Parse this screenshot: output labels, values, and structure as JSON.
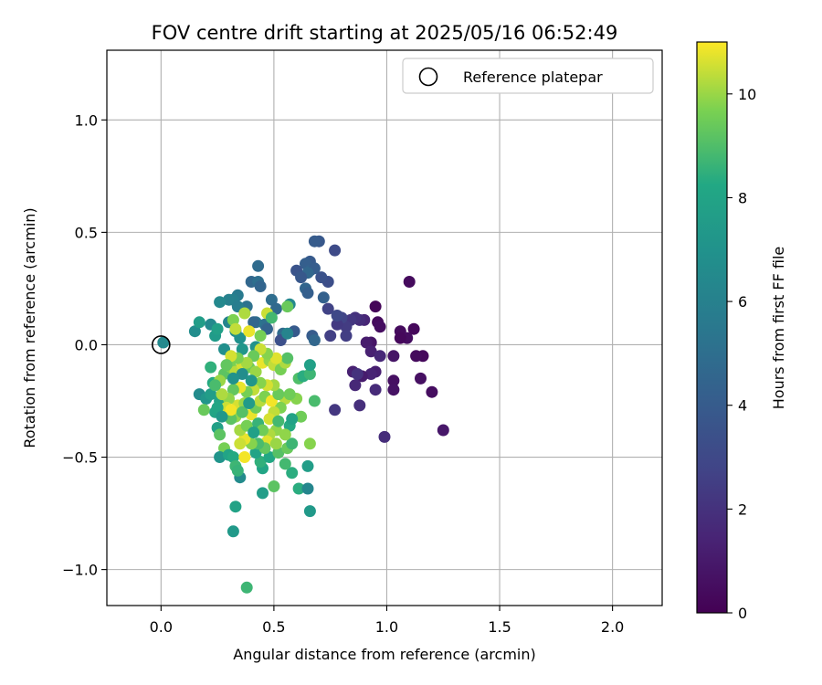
{
  "chart_data": {
    "type": "scatter",
    "title": "FOV centre drift starting at 2025/05/16 06:52:49",
    "xlabel": "Angular distance from reference (arcmin)",
    "ylabel": "Rotation from reference (arcmin)",
    "xlim": [
      -0.24,
      2.22
    ],
    "ylim": [
      -1.16,
      1.31
    ],
    "xticks": [
      0.0,
      0.5,
      1.0,
      1.5,
      2.0
    ],
    "yticks": [
      -1.0,
      -0.5,
      0.0,
      0.5,
      1.0
    ],
    "xtick_labels": [
      "0.0",
      "0.5",
      "1.0",
      "1.5",
      "2.0"
    ],
    "ytick_labels": [
      "−1.0",
      "−0.5",
      "0.0",
      "0.5",
      "1.0"
    ],
    "grid": true,
    "legend": {
      "position": "top-right",
      "entries": [
        "Reference platepar"
      ]
    },
    "reference_point": {
      "x": 0.0,
      "y": 0.0
    },
    "colorbar": {
      "label": "Hours from first FF file",
      "colormap": "viridis",
      "range": [
        0,
        11
      ],
      "ticks": [
        0,
        2,
        4,
        6,
        8,
        10
      ],
      "tick_labels": [
        "0",
        "2",
        "4",
        "6",
        "8",
        "10"
      ]
    },
    "points": [
      {
        "x": 1.1,
        "y": 0.28,
        "h": 0.4
      },
      {
        "x": 1.12,
        "y": 0.07,
        "h": 0.3
      },
      {
        "x": 1.06,
        "y": 0.06,
        "h": 0.4
      },
      {
        "x": 1.09,
        "y": 0.03,
        "h": 0.5
      },
      {
        "x": 1.06,
        "y": 0.03,
        "h": 0.3
      },
      {
        "x": 1.16,
        "y": -0.05,
        "h": 0.3
      },
      {
        "x": 1.13,
        "y": -0.05,
        "h": 0.4
      },
      {
        "x": 1.15,
        "y": -0.15,
        "h": 0.6
      },
      {
        "x": 1.2,
        "y": -0.21,
        "h": 0.5
      },
      {
        "x": 1.25,
        "y": -0.38,
        "h": 0.9
      },
      {
        "x": 1.03,
        "y": -0.16,
        "h": 0.6
      },
      {
        "x": 1.03,
        "y": -0.2,
        "h": 0.7
      },
      {
        "x": 0.95,
        "y": 0.17,
        "h": 0.2
      },
      {
        "x": 0.96,
        "y": 0.1,
        "h": 0.4
      },
      {
        "x": 0.97,
        "y": 0.08,
        "h": 0.5
      },
      {
        "x": 0.93,
        "y": 0.01,
        "h": 0.8
      },
      {
        "x": 0.91,
        "y": 0.01,
        "h": 1.1
      },
      {
        "x": 0.93,
        "y": -0.03,
        "h": 1.3
      },
      {
        "x": 0.97,
        "y": -0.05,
        "h": 1.6
      },
      {
        "x": 1.03,
        "y": -0.05,
        "h": 0.8
      },
      {
        "x": 0.99,
        "y": -0.41,
        "h": 1.8
      },
      {
        "x": 0.95,
        "y": -0.12,
        "h": 1.2
      },
      {
        "x": 0.93,
        "y": -0.13,
        "h": 1.4
      },
      {
        "x": 0.95,
        "y": -0.2,
        "h": 1.7
      },
      {
        "x": 0.89,
        "y": -0.14,
        "h": 1.1
      },
      {
        "x": 0.85,
        "y": -0.12,
        "h": 1.3
      },
      {
        "x": 0.86,
        "y": -0.18,
        "h": 1.6
      },
      {
        "x": 0.88,
        "y": -0.27,
        "h": 1.9
      },
      {
        "x": 0.87,
        "y": -0.13,
        "h": 2.0
      },
      {
        "x": 0.77,
        "y": -0.29,
        "h": 2.2
      },
      {
        "x": 0.9,
        "y": 0.11,
        "h": 1.5
      },
      {
        "x": 0.88,
        "y": 0.11,
        "h": 1.8
      },
      {
        "x": 0.86,
        "y": 0.12,
        "h": 2.0
      },
      {
        "x": 0.84,
        "y": 0.11,
        "h": 2.2
      },
      {
        "x": 0.82,
        "y": 0.08,
        "h": 2.4
      },
      {
        "x": 0.8,
        "y": 0.12,
        "h": 2.8
      },
      {
        "x": 0.82,
        "y": 0.04,
        "h": 2.5
      },
      {
        "x": 0.75,
        "y": 0.04,
        "h": 2.6
      },
      {
        "x": 0.78,
        "y": 0.09,
        "h": 2.3
      },
      {
        "x": 0.74,
        "y": 0.16,
        "h": 2.7
      },
      {
        "x": 0.78,
        "y": 0.13,
        "h": 3.0
      },
      {
        "x": 0.77,
        "y": 0.42,
        "h": 3.1
      },
      {
        "x": 0.74,
        "y": 0.28,
        "h": 3.3
      },
      {
        "x": 0.71,
        "y": 0.3,
        "h": 3.5
      },
      {
        "x": 0.7,
        "y": 0.46,
        "h": 3.8
      },
      {
        "x": 0.68,
        "y": 0.46,
        "h": 4.0
      },
      {
        "x": 0.66,
        "y": 0.37,
        "h": 3.9
      },
      {
        "x": 0.64,
        "y": 0.36,
        "h": 4.2
      },
      {
        "x": 0.66,
        "y": 0.33,
        "h": 4.4
      },
      {
        "x": 0.68,
        "y": 0.34,
        "h": 4.1
      },
      {
        "x": 0.65,
        "y": 0.32,
        "h": 4.6
      },
      {
        "x": 0.6,
        "y": 0.33,
        "h": 3.6
      },
      {
        "x": 0.62,
        "y": 0.3,
        "h": 3.8
      },
      {
        "x": 0.72,
        "y": 0.21,
        "h": 4.3
      },
      {
        "x": 0.64,
        "y": 0.25,
        "h": 4.5
      },
      {
        "x": 0.65,
        "y": 0.23,
        "h": 4.2
      },
      {
        "x": 0.67,
        "y": 0.04,
        "h": 4.0
      },
      {
        "x": 0.68,
        "y": 0.02,
        "h": 4.6
      },
      {
        "x": 0.59,
        "y": 0.06,
        "h": 3.9
      },
      {
        "x": 0.54,
        "y": 0.05,
        "h": 4.8
      },
      {
        "x": 0.53,
        "y": 0.02,
        "h": 3.4
      },
      {
        "x": 0.43,
        "y": 0.35,
        "h": 4.8
      },
      {
        "x": 0.4,
        "y": 0.28,
        "h": 4.6
      },
      {
        "x": 0.43,
        "y": 0.28,
        "h": 5.0
      },
      {
        "x": 0.44,
        "y": 0.26,
        "h": 4.5
      },
      {
        "x": 0.49,
        "y": 0.2,
        "h": 4.9
      },
      {
        "x": 0.51,
        "y": 0.16,
        "h": 4.7
      },
      {
        "x": 0.46,
        "y": 0.09,
        "h": 5.0
      },
      {
        "x": 0.47,
        "y": 0.07,
        "h": 4.4
      },
      {
        "x": 0.42,
        "y": 0.1,
        "h": 5.3
      },
      {
        "x": 0.38,
        "y": 0.17,
        "h": 5.2
      },
      {
        "x": 0.41,
        "y": 0.1,
        "h": 4.6
      },
      {
        "x": 0.34,
        "y": 0.22,
        "h": 5.6
      },
      {
        "x": 0.32,
        "y": 0.2,
        "h": 5.9
      },
      {
        "x": 0.3,
        "y": 0.2,
        "h": 6.0
      },
      {
        "x": 0.34,
        "y": 0.17,
        "h": 5.8
      },
      {
        "x": 0.3,
        "y": 0.1,
        "h": 6.2
      },
      {
        "x": 0.26,
        "y": 0.19,
        "h": 6.4
      },
      {
        "x": 0.22,
        "y": 0.09,
        "h": 6.5
      },
      {
        "x": 0.15,
        "y": 0.06,
        "h": 6.7
      },
      {
        "x": 0.17,
        "y": 0.1,
        "h": 7.6
      },
      {
        "x": 0.01,
        "y": 0.01,
        "h": 6.5
      },
      {
        "x": 0.57,
        "y": 0.18,
        "h": 6.4
      },
      {
        "x": 0.56,
        "y": 0.05,
        "h": 6.2
      },
      {
        "x": 0.33,
        "y": 0.06,
        "h": 6.6
      },
      {
        "x": 0.35,
        "y": 0.03,
        "h": 6.9
      },
      {
        "x": 0.36,
        "y": -0.02,
        "h": 7.2
      },
      {
        "x": 0.28,
        "y": -0.02,
        "h": 6.8
      },
      {
        "x": 0.42,
        "y": -0.01,
        "h": 7.0
      },
      {
        "x": 0.24,
        "y": 0.04,
        "h": 7.5
      },
      {
        "x": 0.25,
        "y": 0.07,
        "h": 7.8
      },
      {
        "x": 0.22,
        "y": -0.1,
        "h": 8.5
      },
      {
        "x": 0.23,
        "y": -0.17,
        "h": 8.3
      },
      {
        "x": 0.17,
        "y": -0.22,
        "h": 6.6
      },
      {
        "x": 0.2,
        "y": -0.24,
        "h": 7.2
      },
      {
        "x": 0.22,
        "y": -0.22,
        "h": 7.6
      },
      {
        "x": 0.26,
        "y": -0.25,
        "h": 7.9
      },
      {
        "x": 0.24,
        "y": -0.3,
        "h": 8.0
      },
      {
        "x": 0.19,
        "y": -0.29,
        "h": 9.4
      },
      {
        "x": 0.25,
        "y": -0.37,
        "h": 7.8
      },
      {
        "x": 0.26,
        "y": -0.4,
        "h": 9.2
      },
      {
        "x": 0.28,
        "y": -0.46,
        "h": 9.6
      },
      {
        "x": 0.26,
        "y": -0.5,
        "h": 7.1
      },
      {
        "x": 0.3,
        "y": -0.49,
        "h": 8.0
      },
      {
        "x": 0.32,
        "y": -0.5,
        "h": 8.3
      },
      {
        "x": 0.33,
        "y": -0.54,
        "h": 8.7
      },
      {
        "x": 0.35,
        "y": -0.59,
        "h": 6.6
      },
      {
        "x": 0.34,
        "y": -0.56,
        "h": 8.6
      },
      {
        "x": 0.33,
        "y": -0.72,
        "h": 7.9
      },
      {
        "x": 0.32,
        "y": -0.83,
        "h": 7.4
      },
      {
        "x": 0.38,
        "y": -1.08,
        "h": 8.7
      },
      {
        "x": 0.45,
        "y": -0.66,
        "h": 7.6
      },
      {
        "x": 0.5,
        "y": -0.63,
        "h": 9.2
      },
      {
        "x": 0.61,
        "y": -0.64,
        "h": 8.4
      },
      {
        "x": 0.65,
        "y": -0.64,
        "h": 6.3
      },
      {
        "x": 0.66,
        "y": -0.74,
        "h": 7.4
      },
      {
        "x": 0.65,
        "y": -0.54,
        "h": 7.6
      },
      {
        "x": 0.66,
        "y": -0.44,
        "h": 9.8
      },
      {
        "x": 0.58,
        "y": -0.57,
        "h": 8.4
      },
      {
        "x": 0.55,
        "y": -0.53,
        "h": 8.8
      },
      {
        "x": 0.45,
        "y": -0.55,
        "h": 8.1
      },
      {
        "x": 0.44,
        "y": -0.52,
        "h": 8.5
      },
      {
        "x": 0.42,
        "y": -0.48,
        "h": 8.0
      },
      {
        "x": 0.48,
        "y": -0.5,
        "h": 8.2
      },
      {
        "x": 0.52,
        "y": -0.48,
        "h": 9.1
      },
      {
        "x": 0.56,
        "y": -0.46,
        "h": 9.4
      },
      {
        "x": 0.58,
        "y": -0.44,
        "h": 8.7
      },
      {
        "x": 0.62,
        "y": -0.32,
        "h": 9.5
      },
      {
        "x": 0.57,
        "y": -0.36,
        "h": 8.3
      },
      {
        "x": 0.58,
        "y": -0.33,
        "h": 7.9
      },
      {
        "x": 0.61,
        "y": -0.15,
        "h": 9.0
      },
      {
        "x": 0.63,
        "y": -0.14,
        "h": 8.4
      },
      {
        "x": 0.66,
        "y": -0.13,
        "h": 8.7
      },
      {
        "x": 0.66,
        "y": -0.09,
        "h": 7.8
      },
      {
        "x": 0.68,
        "y": -0.25,
        "h": 8.9
      },
      {
        "x": 0.6,
        "y": -0.24,
        "h": 9.8
      },
      {
        "x": 0.55,
        "y": -0.24,
        "h": 10.3
      },
      {
        "x": 0.57,
        "y": -0.22,
        "h": 9.5
      },
      {
        "x": 0.53,
        "y": -0.28,
        "h": 9.7
      },
      {
        "x": 0.5,
        "y": -0.3,
        "h": 10.4
      },
      {
        "x": 0.48,
        "y": -0.33,
        "h": 10.6
      },
      {
        "x": 0.51,
        "y": -0.38,
        "h": 9.9
      },
      {
        "x": 0.48,
        "y": -0.4,
        "h": 10.2
      },
      {
        "x": 0.47,
        "y": -0.43,
        "h": 10.7
      },
      {
        "x": 0.51,
        "y": -0.44,
        "h": 10.0
      },
      {
        "x": 0.46,
        "y": -0.46,
        "h": 9.3
      },
      {
        "x": 0.43,
        "y": -0.44,
        "h": 8.9
      },
      {
        "x": 0.4,
        "y": -0.44,
        "h": 9.8
      },
      {
        "x": 0.37,
        "y": -0.42,
        "h": 10.8
      },
      {
        "x": 0.35,
        "y": -0.44,
        "h": 10.5
      },
      {
        "x": 0.37,
        "y": -0.5,
        "h": 10.9
      },
      {
        "x": 0.35,
        "y": -0.38,
        "h": 10.1
      },
      {
        "x": 0.38,
        "y": -0.36,
        "h": 9.6
      },
      {
        "x": 0.33,
        "y": -0.32,
        "h": 9.9
      },
      {
        "x": 0.31,
        "y": -0.33,
        "h": 9.2
      },
      {
        "x": 0.34,
        "y": -0.27,
        "h": 10.6
      },
      {
        "x": 0.37,
        "y": -0.26,
        "h": 10.0
      },
      {
        "x": 0.4,
        "y": -0.31,
        "h": 10.8
      },
      {
        "x": 0.42,
        "y": -0.28,
        "h": 9.5
      },
      {
        "x": 0.44,
        "y": -0.25,
        "h": 10.3
      },
      {
        "x": 0.46,
        "y": -0.23,
        "h": 9.7
      },
      {
        "x": 0.49,
        "y": -0.25,
        "h": 10.9
      },
      {
        "x": 0.52,
        "y": -0.22,
        "h": 9.4
      },
      {
        "x": 0.5,
        "y": -0.18,
        "h": 10.1
      },
      {
        "x": 0.47,
        "y": -0.18,
        "h": 10.6
      },
      {
        "x": 0.44,
        "y": -0.17,
        "h": 9.8
      },
      {
        "x": 0.41,
        "y": -0.2,
        "h": 10.4
      },
      {
        "x": 0.38,
        "y": -0.21,
        "h": 9.6
      },
      {
        "x": 0.35,
        "y": -0.19,
        "h": 10.8
      },
      {
        "x": 0.32,
        "y": -0.2,
        "h": 9.3
      },
      {
        "x": 0.3,
        "y": -0.24,
        "h": 9.9
      },
      {
        "x": 0.27,
        "y": -0.22,
        "h": 10.2
      },
      {
        "x": 0.29,
        "y": -0.28,
        "h": 10.5
      },
      {
        "x": 0.31,
        "y": -0.29,
        "h": 10.9
      },
      {
        "x": 0.28,
        "y": -0.13,
        "h": 9.2
      },
      {
        "x": 0.31,
        "y": -0.1,
        "h": 9.7
      },
      {
        "x": 0.33,
        "y": -0.12,
        "h": 10.3
      },
      {
        "x": 0.36,
        "y": -0.09,
        "h": 10.6
      },
      {
        "x": 0.39,
        "y": -0.1,
        "h": 9.5
      },
      {
        "x": 0.42,
        "y": -0.12,
        "h": 10.0
      },
      {
        "x": 0.45,
        "y": -0.08,
        "h": 10.8
      },
      {
        "x": 0.48,
        "y": -0.07,
        "h": 9.9
      },
      {
        "x": 0.5,
        "y": -0.09,
        "h": 10.4
      },
      {
        "x": 0.53,
        "y": -0.11,
        "h": 9.6
      },
      {
        "x": 0.55,
        "y": -0.08,
        "h": 10.2
      },
      {
        "x": 0.56,
        "y": -0.06,
        "h": 9.1
      },
      {
        "x": 0.51,
        "y": -0.06,
        "h": 10.7
      },
      {
        "x": 0.47,
        "y": -0.04,
        "h": 9.8
      },
      {
        "x": 0.44,
        "y": -0.02,
        "h": 10.5
      },
      {
        "x": 0.41,
        "y": -0.05,
        "h": 9.4
      },
      {
        "x": 0.38,
        "y": -0.08,
        "h": 10.1
      },
      {
        "x": 0.34,
        "y": -0.06,
        "h": 9.7
      },
      {
        "x": 0.31,
        "y": -0.05,
        "h": 10.6
      },
      {
        "x": 0.29,
        "y": -0.09,
        "h": 9.3
      },
      {
        "x": 0.26,
        "y": -0.16,
        "h": 10.0
      },
      {
        "x": 0.24,
        "y": -0.18,
        "h": 8.9
      },
      {
        "x": 0.37,
        "y": 0.14,
        "h": 10.2
      },
      {
        "x": 0.32,
        "y": 0.11,
        "h": 9.7
      },
      {
        "x": 0.33,
        "y": 0.07,
        "h": 10.4
      },
      {
        "x": 0.39,
        "y": 0.06,
        "h": 10.8
      },
      {
        "x": 0.44,
        "y": 0.04,
        "h": 9.6
      },
      {
        "x": 0.47,
        "y": 0.14,
        "h": 10.5
      },
      {
        "x": 0.49,
        "y": 0.12,
        "h": 8.8
      },
      {
        "x": 0.56,
        "y": 0.17,
        "h": 9.4
      },
      {
        "x": 0.25,
        "y": -0.28,
        "h": 8.1
      },
      {
        "x": 0.36,
        "y": -0.3,
        "h": 9.1
      },
      {
        "x": 0.43,
        "y": -0.35,
        "h": 8.6
      },
      {
        "x": 0.45,
        "y": -0.38,
        "h": 9.5
      },
      {
        "x": 0.52,
        "y": -0.34,
        "h": 8.8
      },
      {
        "x": 0.55,
        "y": -0.4,
        "h": 9.9
      },
      {
        "x": 0.4,
        "y": -0.16,
        "h": 7.2
      },
      {
        "x": 0.36,
        "y": -0.13,
        "h": 6.7
      },
      {
        "x": 0.32,
        "y": -0.15,
        "h": 7.0
      },
      {
        "x": 0.39,
        "y": -0.26,
        "h": 7.5
      },
      {
        "x": 0.27,
        "y": -0.32,
        "h": 7.3
      },
      {
        "x": 0.41,
        "y": -0.39,
        "h": 7.8
      }
    ]
  }
}
